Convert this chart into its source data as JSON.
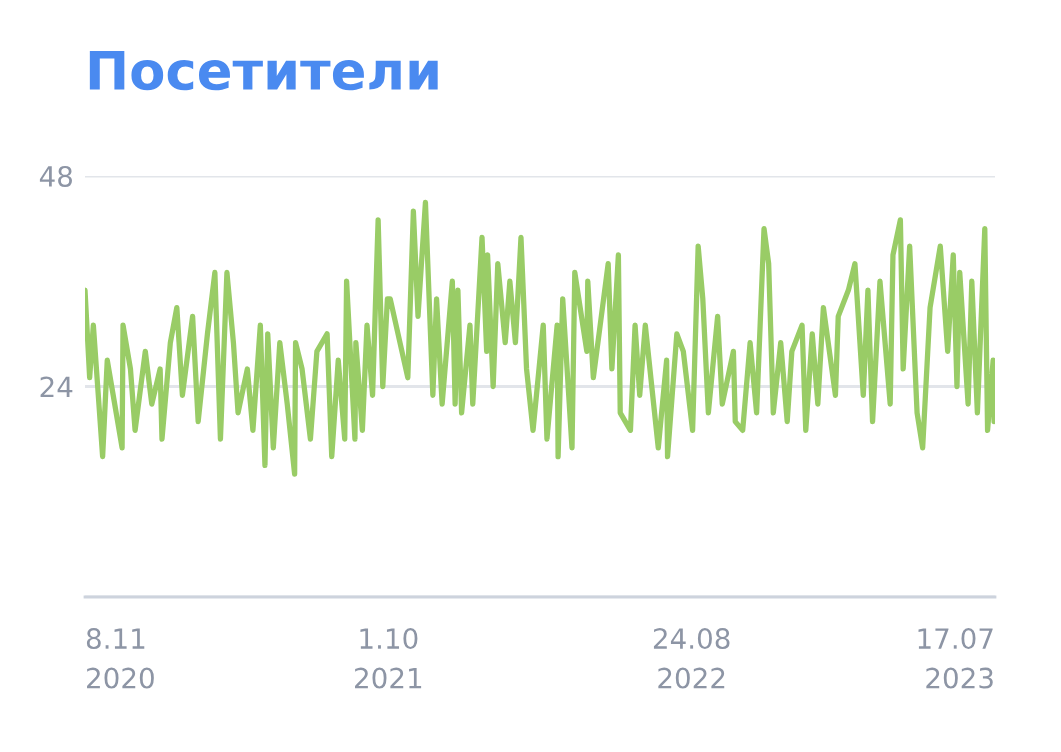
{
  "chart_data": {
    "type": "line",
    "title": "Посетители",
    "x": [
      "2020-11-08",
      "2020-11-13",
      "2020-11-17",
      "2020-11-27",
      "2020-12-02",
      "2020-12-10",
      "2020-12-18",
      "2020-12-19",
      "2020-12-27",
      "2021-01-01",
      "2021-01-12",
      "2021-01-19",
      "2021-01-28",
      "2021-01-30",
      "2021-02-08",
      "2021-02-15",
      "2021-02-21",
      "2021-03-04",
      "2021-03-10",
      "2021-03-20",
      "2021-03-28",
      "2021-04-03",
      "2021-04-10",
      "2021-04-17",
      "2021-04-22",
      "2021-05-02",
      "2021-05-08",
      "2021-05-16",
      "2021-05-21",
      "2021-05-24",
      "2021-05-30",
      "2021-06-06",
      "2021-06-14",
      "2021-06-22",
      "2021-06-23",
      "2021-06-30",
      "2021-07-09",
      "2021-07-16",
      "2021-07-27",
      "2021-08-01",
      "2021-08-08",
      "2021-08-15",
      "2021-08-17",
      "2021-08-26",
      "2021-08-27",
      "2021-09-03",
      "2021-09-08",
      "2021-09-14",
      "2021-09-20",
      "2021-09-25",
      "2021-09-30",
      "2021-10-03",
      "2021-10-22",
      "2021-10-28",
      "2021-11-02",
      "2021-11-10",
      "2021-11-18",
      "2021-11-22",
      "2021-11-28",
      "2021-12-09",
      "2021-12-12",
      "2021-12-15",
      "2021-12-19",
      "2021-12-28",
      "2021-12-31",
      "2022-01-10",
      "2022-01-15",
      "2022-01-16",
      "2022-01-22",
      "2022-01-27",
      "2022-02-04",
      "2022-02-09",
      "2022-02-15",
      "2022-02-21",
      "2022-02-27",
      "2022-03-06",
      "2022-03-17",
      "2022-03-21",
      "2022-04-01",
      "2022-04-02",
      "2022-04-07",
      "2022-04-17",
      "2022-04-20",
      "2022-05-03",
      "2022-05-04",
      "2022-05-10",
      "2022-05-26",
      "2022-05-30",
      "2022-06-06",
      "2022-06-08",
      "2022-06-19",
      "2022-06-24",
      "2022-06-29",
      "2022-07-05",
      "2022-07-19",
      "2022-07-28",
      "2022-07-29",
      "2022-08-08",
      "2022-08-15",
      "2022-08-25",
      "2022-08-31",
      "2022-09-05",
      "2022-09-11",
      "2022-09-21",
      "2022-09-26",
      "2022-10-08",
      "2022-10-10",
      "2022-10-18",
      "2022-10-26",
      "2022-11-02",
      "2022-11-10",
      "2022-11-15",
      "2022-11-20",
      "2022-11-28",
      "2022-12-05",
      "2022-12-10",
      "2022-12-21",
      "2022-12-25",
      "2023-01-01",
      "2023-01-07",
      "2023-01-13",
      "2023-01-26",
      "2023-01-29",
      "2023-02-09",
      "2023-02-16",
      "2023-02-25",
      "2023-03-02",
      "2023-03-07",
      "2023-03-15",
      "2023-03-26",
      "2023-03-29",
      "2023-04-06",
      "2023-04-09",
      "2023-04-16",
      "2023-04-24",
      "2023-04-30",
      "2023-05-08",
      "2023-05-19",
      "2023-05-27",
      "2023-06-02",
      "2023-06-06",
      "2023-06-09",
      "2023-06-18",
      "2023-06-22",
      "2023-06-28",
      "2023-07-06",
      "2023-07-09",
      "2023-07-15",
      "2023-07-16"
    ],
    "series": [
      {
        "color": "#99cc66",
        "values": [
          35,
          25,
          31,
          16,
          27,
          22,
          17,
          31,
          26,
          19,
          28,
          22,
          26,
          18,
          29,
          33,
          23,
          32,
          20,
          30,
          37,
          18,
          37,
          29,
          21,
          26,
          19,
          31,
          15,
          30,
          17,
          29,
          22,
          14,
          29,
          26,
          18,
          28,
          30,
          16,
          27,
          18,
          36,
          18,
          29,
          19,
          31,
          23,
          43,
          24,
          34,
          34,
          25,
          44,
          32,
          45,
          23,
          34,
          22,
          36,
          22,
          35,
          21,
          31,
          22,
          41,
          28,
          39,
          24,
          38,
          29,
          36,
          29,
          41,
          26,
          19,
          31,
          18,
          31,
          16,
          34,
          17,
          37,
          28,
          36,
          25,
          38,
          26,
          39,
          21,
          19,
          31,
          23,
          31,
          17,
          27,
          16,
          30,
          28,
          19,
          40,
          34,
          21,
          32,
          22,
          28,
          20,
          19,
          29,
          21,
          42,
          38,
          21,
          29,
          20,
          28,
          31,
          19,
          30,
          22,
          33,
          23,
          32,
          35,
          38,
          23,
          35,
          20,
          36,
          22,
          39,
          43,
          26,
          40,
          21,
          17,
          33,
          40,
          28,
          39,
          24,
          37,
          22,
          36,
          21,
          42,
          19,
          27,
          20
        ]
      }
    ],
    "xlim": [
      "2020-11-08",
      "2023-07-17"
    ],
    "xticks": [
      {
        "value": "2020-11-08",
        "label": "8.11\n2020"
      },
      {
        "value": "2021-10-01",
        "label": "1.10\n2021"
      },
      {
        "value": "2022-08-24",
        "label": "24.08\n2022"
      },
      {
        "value": "2023-07-17",
        "label": "17.07\n2023"
      }
    ],
    "ylim": [
      0,
      48
    ],
    "yticks": [
      {
        "value": 0,
        "label": null
      },
      24,
      48
    ],
    "grid": "y",
    "legend": false,
    "marker": "none",
    "line_style": "solid"
  }
}
